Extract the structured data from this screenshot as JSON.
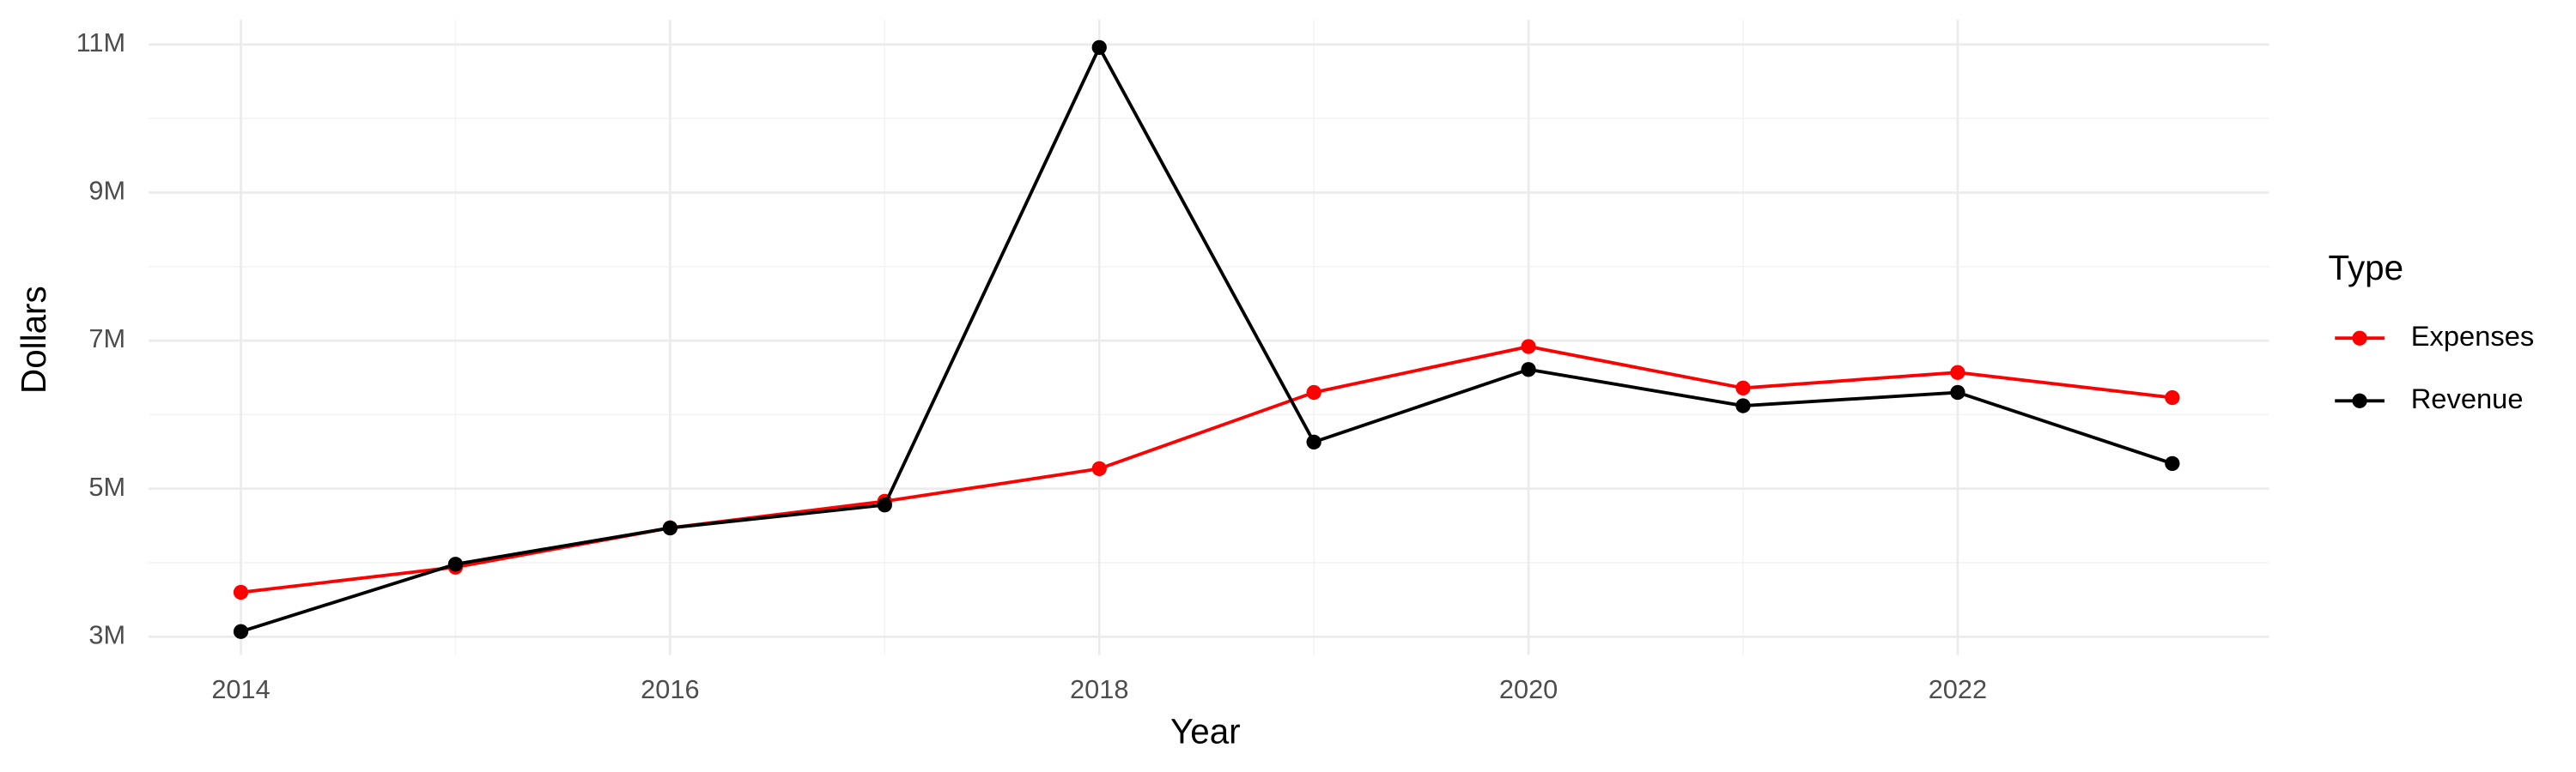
{
  "chart_data": {
    "type": "line",
    "x_label": "Year",
    "y_label": "Dollars",
    "legend_title": "Type",
    "legend_position": "right",
    "grid": true,
    "x": [
      2014,
      2015,
      2016,
      2017,
      2018,
      2019,
      2020,
      2021,
      2022,
      2023
    ],
    "series": [
      {
        "name": "Expenses",
        "color": "#ff0000",
        "values": [
          3600000,
          3940000,
          4470000,
          4830000,
          5270000,
          6300000,
          6920000,
          6360000,
          6570000,
          6230000
        ]
      },
      {
        "name": "Revenue",
        "color": "#000000",
        "values": [
          3070000,
          3980000,
          4470000,
          4780000,
          10960000,
          5630000,
          6610000,
          6120000,
          6300000,
          5340000
        ]
      }
    ],
    "xlim": [
      2013.57,
      2023.45
    ],
    "xticks": [
      2014,
      2016,
      2018,
      2020,
      2022
    ],
    "ylim": [
      2755000,
      11334000
    ],
    "yticks": [
      {
        "value": 3000000,
        "label": "3M"
      },
      {
        "value": 5000000,
        "label": "5M"
      },
      {
        "value": 7000000,
        "label": "7M"
      },
      {
        "value": 9000000,
        "label": "9M"
      },
      {
        "value": 11000000,
        "label": "11M"
      }
    ]
  }
}
